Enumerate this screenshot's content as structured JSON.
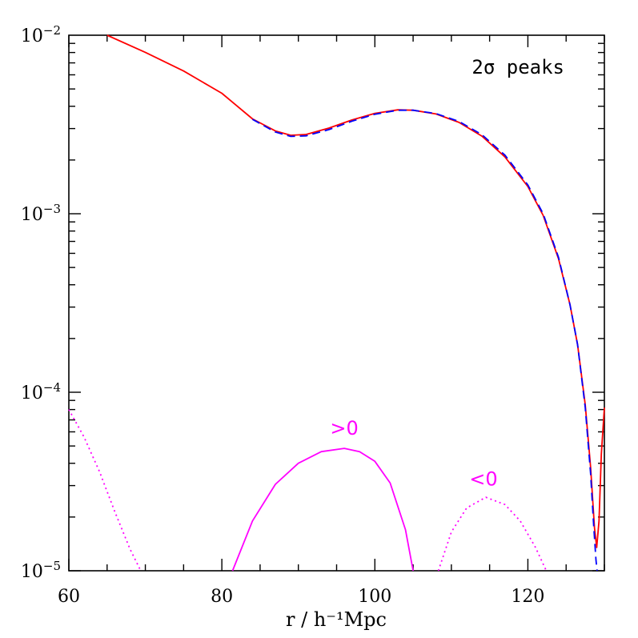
{
  "chart_data": {
    "type": "line",
    "title": "",
    "xlabel": "r / h⁻¹Mpc",
    "ylabel": "",
    "xlim": [
      60,
      130
    ],
    "ylim": [
      1e-05,
      0.01
    ],
    "yscale": "log",
    "x_ticks": [
      {
        "value": 60,
        "label": "60"
      },
      {
        "value": 80,
        "label": "80"
      },
      {
        "value": 100,
        "label": "100"
      },
      {
        "value": 120,
        "label": "120"
      }
    ],
    "y_ticks": [
      {
        "value": 0.01,
        "base": "10",
        "exp": "−2"
      },
      {
        "value": 0.001,
        "base": "10",
        "exp": "−3"
      },
      {
        "value": 0.0001,
        "base": "10",
        "exp": "−4"
      },
      {
        "value": 1e-05,
        "base": "10",
        "exp": "−5"
      }
    ],
    "series": [
      {
        "style": "solid",
        "color": "#ff0000",
        "x": [
          65,
          70,
          75,
          80,
          84,
          87,
          89,
          91,
          94,
          97,
          100,
          103,
          105,
          108,
          111,
          114,
          117,
          120,
          122,
          124,
          125.5,
          126.5,
          127.5,
          128.2,
          128.7,
          129.0,
          129.3,
          129.6,
          130
        ],
        "y": [
          0.01,
          0.00802,
          0.0063,
          0.00473,
          0.0034,
          0.00291,
          0.00275,
          0.00278,
          0.00302,
          0.00335,
          0.00365,
          0.00382,
          0.0038,
          0.00362,
          0.00325,
          0.00272,
          0.00208,
          0.00142,
          0.00098,
          0.00056,
          0.00031,
          0.000185,
          8.5e-05,
          3.8e-05,
          1.75e-05,
          1.35e-05,
          1.9e-05,
          4.5e-05,
          8.2e-05
        ]
      },
      {
        "style": "dashed",
        "color": "#0000ff",
        "x": [
          84,
          87,
          89,
          91,
          94,
          97,
          100,
          103,
          105,
          108,
          111,
          114,
          117,
          120,
          122,
          124,
          125.5,
          126.5,
          127.5,
          128.2,
          128.6,
          128.9,
          129.05
        ],
        "y": [
          0.00338,
          0.00287,
          0.00271,
          0.00273,
          0.00296,
          0.0033,
          0.00361,
          0.0038,
          0.0038,
          0.00364,
          0.00329,
          0.00277,
          0.00213,
          0.00145,
          0.001,
          0.00057,
          0.00031,
          0.000185,
          8.2e-05,
          3.5e-05,
          1.8e-05,
          1.15e-05,
          1e-05
        ]
      },
      {
        "style": "solid",
        "color": "#ff00ff",
        "x": [
          81.4,
          84,
          87,
          90,
          93,
          96,
          98,
          100,
          102,
          104,
          105
        ],
        "y": [
          1e-05,
          1.9e-05,
          3.05e-05,
          4e-05,
          4.65e-05,
          4.85e-05,
          4.65e-05,
          4.1e-05,
          3.1e-05,
          1.7e-05,
          1e-05
        ]
      },
      {
        "style": "dotted",
        "color": "#ff00ff",
        "x": [
          60,
          62,
          64,
          66,
          68,
          69.4
        ],
        "y": [
          8e-05,
          5.6e-05,
          3.6e-05,
          2.15e-05,
          1.32e-05,
          1e-05
        ]
      },
      {
        "style": "dotted",
        "color": "#ff00ff",
        "x": [
          108.3,
          110,
          112,
          114.5,
          117,
          119,
          121,
          122.4
        ],
        "y": [
          1e-05,
          1.65e-05,
          2.25e-05,
          2.58e-05,
          2.35e-05,
          1.9e-05,
          1.35e-05,
          1e-05
        ]
      }
    ],
    "annotations": [
      {
        "text": ">0",
        "x": 96,
        "y": 5.8e-05,
        "color": "#ff00ff"
      },
      {
        "text": "<0",
        "x": 114.2,
        "y": 3e-05,
        "color": "#ff00ff"
      }
    ],
    "legend_text": "2σ peaks",
    "legend_position": "top-right"
  }
}
